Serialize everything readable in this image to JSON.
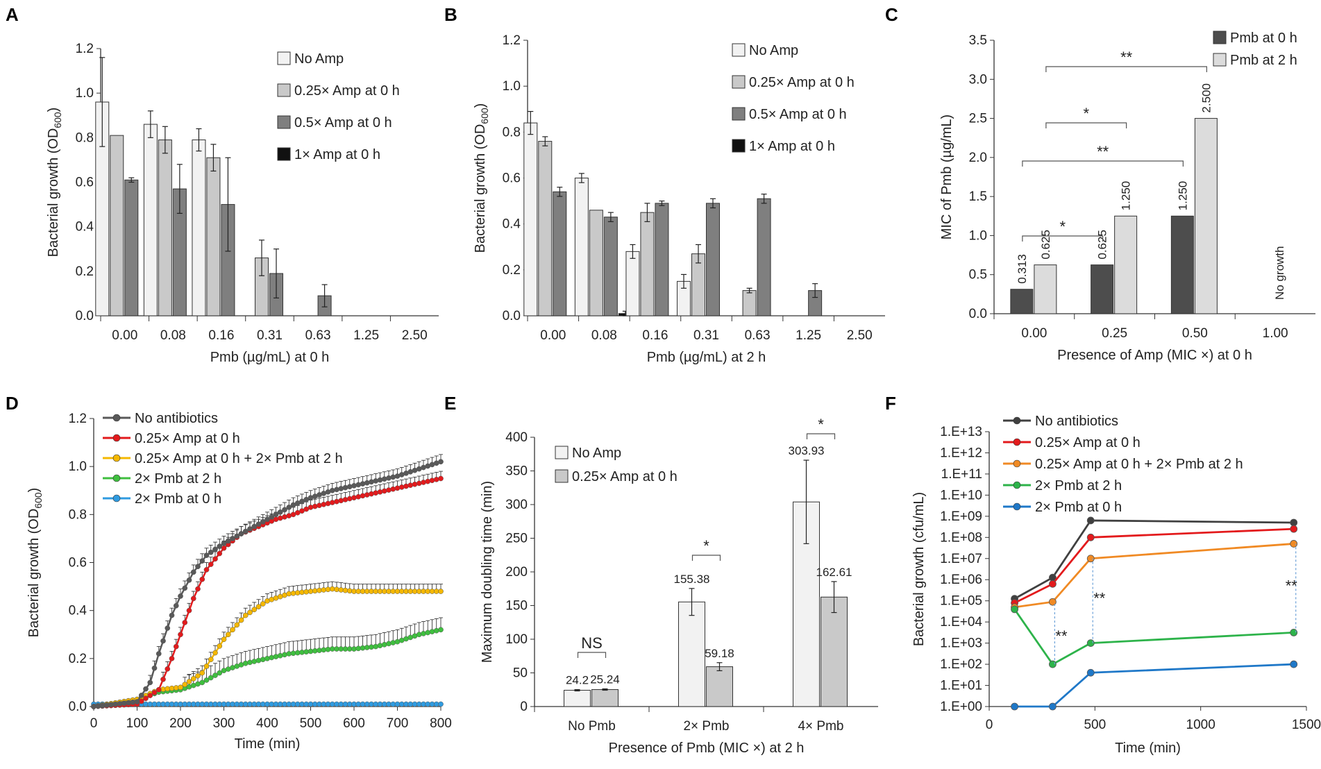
{
  "figure": {
    "panels": [
      "A",
      "B",
      "C",
      "D",
      "E",
      "F"
    ]
  },
  "chart_data": [
    {
      "id": "A",
      "type": "bar",
      "title": "",
      "xlabel": "Pmb (µg/mL) at 0 h",
      "ylabel": "Bacterial growth (OD600)",
      "ylim": [
        0,
        1.2
      ],
      "yticks": [
        "0.0",
        "0.2",
        "0.4",
        "0.6",
        "0.8",
        "1.0",
        "1.2"
      ],
      "categories": [
        "0.00",
        "0.08",
        "0.16",
        "0.31",
        "0.63",
        "1.25",
        "2.50"
      ],
      "series": [
        {
          "name": "No Amp",
          "color": "#f2f2f2",
          "values": [
            0.96,
            0.86,
            0.79,
            0,
            0,
            0,
            0
          ],
          "errors": [
            0.2,
            0.06,
            0.05,
            0,
            0,
            0,
            0
          ]
        },
        {
          "name": "0.25× Amp at 0 h",
          "color": "#c9c9c9",
          "values": [
            0.81,
            0.79,
            0.71,
            0.26,
            0,
            0,
            0
          ],
          "errors": [
            0,
            0.06,
            0.06,
            0.08,
            0,
            0,
            0
          ]
        },
        {
          "name": "0.5× Amp at 0 h",
          "color": "#7f7f7f",
          "values": [
            0.61,
            0.57,
            0.5,
            0.19,
            0.09,
            0,
            0
          ],
          "errors": [
            0.01,
            0.11,
            0.21,
            0.11,
            0.05,
            0,
            0
          ]
        },
        {
          "name": "1× Amp at 0 h",
          "color": "#111111",
          "values": [
            0,
            0,
            0,
            0,
            0,
            0,
            0
          ],
          "errors": [
            0,
            0,
            0,
            0,
            0,
            0,
            0
          ]
        }
      ]
    },
    {
      "id": "B",
      "type": "bar",
      "xlabel": "Pmb (µg/mL) at 2 h",
      "ylabel": "Bacterial growth (OD600)",
      "ylim": [
        0,
        1.2
      ],
      "yticks": [
        "0.0",
        "0.2",
        "0.4",
        "0.6",
        "0.8",
        "1.0",
        "1.2"
      ],
      "categories": [
        "0.00",
        "0.08",
        "0.16",
        "0.31",
        "0.63",
        "1.25",
        "2.50"
      ],
      "series": [
        {
          "name": "No Amp",
          "color": "#f2f2f2",
          "values": [
            0.84,
            0.6,
            0.28,
            0.15,
            0,
            0,
            0
          ],
          "errors": [
            0.05,
            0.02,
            0.03,
            0.03,
            0,
            0,
            0
          ]
        },
        {
          "name": "0.25× Amp at 0 h",
          "color": "#c9c9c9",
          "values": [
            0.76,
            0.46,
            0.45,
            0.27,
            0.11,
            0,
            0
          ],
          "errors": [
            0.02,
            0,
            0.04,
            0.04,
            0.01,
            0,
            0
          ]
        },
        {
          "name": "0.5× Amp at 0 h",
          "color": "#7f7f7f",
          "values": [
            0.54,
            0.43,
            0.49,
            0.49,
            0.51,
            0.11,
            0
          ],
          "errors": [
            0.02,
            0.02,
            0.01,
            0.02,
            0.02,
            0.03,
            0
          ]
        },
        {
          "name": "1× Amp at 0 h",
          "color": "#111111",
          "values": [
            0,
            0.01,
            0,
            0,
            0,
            0,
            0
          ],
          "errors": [
            0,
            0.01,
            0,
            0,
            0,
            0,
            0
          ]
        }
      ]
    },
    {
      "id": "C",
      "type": "bar",
      "xlabel": "Presence of Amp (MIC ×) at 0 h",
      "ylabel": "MIC of Pmb (µg/mL)",
      "ylim": [
        0,
        3.5
      ],
      "yticks": [
        "0.0",
        "0.5",
        "1.0",
        "1.5",
        "2.0",
        "2.5",
        "3.0",
        "3.5"
      ],
      "categories": [
        "0.00",
        "0.25",
        "0.50",
        "1.00"
      ],
      "series": [
        {
          "name": "Pmb at 0 h",
          "color": "#4d4d4d",
          "values": [
            0.313,
            0.625,
            1.25,
            0
          ],
          "labels": [
            "0.313",
            "0.625",
            "1.250",
            ""
          ]
        },
        {
          "name": "Pmb at 2 h",
          "color": "#dcdcdc",
          "values": [
            0.625,
            1.25,
            2.5,
            0
          ],
          "labels": [
            "0.625",
            "1.250",
            "2.500",
            ""
          ]
        }
      ],
      "annotations": {
        "no_growth": "No growth",
        "sig": [
          "*",
          "*",
          "**",
          "**"
        ]
      }
    },
    {
      "id": "D",
      "type": "line",
      "xlabel": "Time (min)",
      "ylabel": "Bacterial growth (OD600)",
      "xlim": [
        0,
        800
      ],
      "ylim": [
        0,
        1.2
      ],
      "xticks": [
        "0",
        "100",
        "200",
        "300",
        "400",
        "500",
        "600",
        "700",
        "800"
      ],
      "yticks": [
        "0.0",
        "0.2",
        "0.4",
        "0.6",
        "0.8",
        "1.0",
        "1.2"
      ],
      "series": [
        {
          "name": "No antibiotics",
          "color": "#595959",
          "x": [
            0,
            100,
            130,
            150,
            180,
            200,
            230,
            260,
            300,
            340,
            380,
            420,
            460,
            500,
            550,
            600,
            650,
            700,
            750,
            800
          ],
          "y": [
            0,
            0.02,
            0.1,
            0.22,
            0.38,
            0.46,
            0.56,
            0.63,
            0.68,
            0.72,
            0.76,
            0.8,
            0.84,
            0.87,
            0.9,
            0.92,
            0.94,
            0.96,
            0.99,
            1.02
          ]
        },
        {
          "name": "0.25× Amp at 0 h",
          "color": "#e31a1c",
          "x": [
            0,
            100,
            150,
            180,
            200,
            230,
            260,
            300,
            340,
            380,
            420,
            460,
            500,
            550,
            600,
            650,
            700,
            750,
            800
          ],
          "y": [
            0,
            0.01,
            0.07,
            0.2,
            0.3,
            0.45,
            0.57,
            0.66,
            0.72,
            0.75,
            0.78,
            0.8,
            0.83,
            0.85,
            0.87,
            0.89,
            0.91,
            0.93,
            0.95
          ]
        },
        {
          "name": "0.25× Amp at 0 h + 2× Pmb at 2 h",
          "color": "#f5b800",
          "x": [
            0,
            100,
            150,
            200,
            250,
            300,
            350,
            400,
            450,
            500,
            550,
            600,
            650,
            700,
            750,
            800
          ],
          "y": [
            0,
            0.03,
            0.07,
            0.08,
            0.14,
            0.28,
            0.38,
            0.44,
            0.47,
            0.48,
            0.49,
            0.48,
            0.48,
            0.48,
            0.48,
            0.48
          ]
        },
        {
          "name": "2× Pmb at 2 h",
          "color": "#3fbf3f",
          "x": [
            0,
            100,
            150,
            200,
            250,
            300,
            350,
            400,
            450,
            500,
            550,
            600,
            650,
            700,
            750,
            800
          ],
          "y": [
            0,
            0.03,
            0.06,
            0.07,
            0.1,
            0.15,
            0.18,
            0.2,
            0.22,
            0.23,
            0.24,
            0.24,
            0.25,
            0.27,
            0.3,
            0.32
          ]
        },
        {
          "name": "2× Pmb at 0 h",
          "color": "#2f9be0",
          "x": [
            0,
            200,
            400,
            600,
            800
          ],
          "y": [
            0.01,
            0.01,
            0.01,
            0.01,
            0.01
          ]
        }
      ]
    },
    {
      "id": "E",
      "type": "bar",
      "xlabel": "Presence of Pmb (MIC ×) at 2 h",
      "ylabel": "Maximum doubling time (min)",
      "ylim": [
        0,
        400
      ],
      "yticks": [
        "0",
        "50",
        "100",
        "150",
        "200",
        "250",
        "300",
        "350",
        "400"
      ],
      "categories": [
        "No Pmb",
        "2× Pmb",
        "4× Pmb"
      ],
      "series": [
        {
          "name": "No Amp",
          "color": "#f2f2f2",
          "values": [
            24.2,
            155.38,
            303.93
          ],
          "errors": [
            1,
            20,
            62
          ],
          "labels": [
            "24.2",
            "155.38",
            "303.93"
          ]
        },
        {
          "name": "0.25× Amp at 0 h",
          "color": "#c9c9c9",
          "values": [
            25.24,
            59.18,
            162.61
          ],
          "errors": [
            1,
            6,
            23
          ],
          "labels": [
            "25.24",
            "59.18",
            "162.61"
          ]
        }
      ],
      "annotations": {
        "sig": [
          "NS",
          "*",
          "*"
        ]
      }
    },
    {
      "id": "F",
      "type": "line",
      "xlabel": "Time (min)",
      "ylabel": "Bacterial growth (cfu/mL)",
      "xlim": [
        0,
        1500
      ],
      "ylim_log10": [
        0,
        13
      ],
      "xticks": [
        "0",
        "500",
        "1000",
        "1500"
      ],
      "yticks": [
        "1.E+00",
        "1.E+01",
        "1.E+02",
        "1.E+03",
        "1.E+04",
        "1.E+05",
        "1.E+06",
        "1.E+07",
        "1.E+08",
        "1.E+09",
        "1.E+10",
        "1.E+11",
        "1.E+12",
        "1.E+13"
      ],
      "series": [
        {
          "name": "No antibiotics",
          "color": "#404040",
          "x": [
            120,
            300,
            480,
            1440
          ],
          "log10y": [
            5.1,
            6.1,
            8.8,
            8.7
          ]
        },
        {
          "name": "0.25× Amp at 0 h",
          "color": "#e31a1c",
          "x": [
            120,
            300,
            480,
            1440
          ],
          "log10y": [
            4.9,
            5.8,
            8.0,
            8.4
          ]
        },
        {
          "name": "0.25× Amp at 0 h + 2× Pmb at 2 h",
          "color": "#f08a24",
          "x": [
            120,
            300,
            480,
            1440
          ],
          "log10y": [
            4.7,
            4.95,
            7.0,
            7.7
          ]
        },
        {
          "name": "2× Pmb at 2 h",
          "color": "#2db34a",
          "x": [
            120,
            300,
            480,
            1440
          ],
          "log10y": [
            4.6,
            2.0,
            3.0,
            3.5
          ]
        },
        {
          "name": "2× Pmb at 0 h",
          "color": "#1f78c8",
          "x": [
            120,
            300,
            480,
            1440
          ],
          "log10y": [
            0,
            0,
            1.6,
            2.0
          ]
        }
      ],
      "annotations": {
        "sig": [
          "**",
          "**",
          "**"
        ]
      }
    }
  ]
}
